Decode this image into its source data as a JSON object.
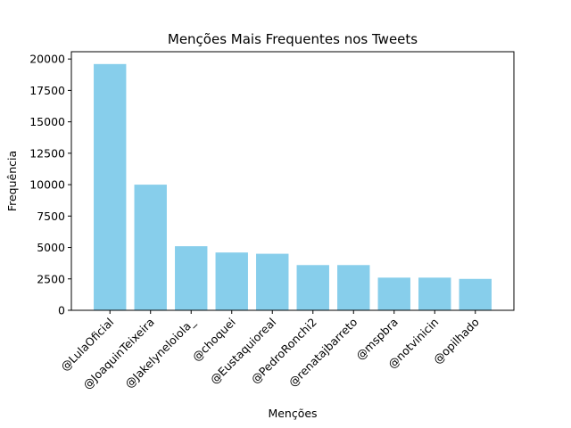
{
  "chart_data": {
    "type": "bar",
    "title": "Menções Mais Frequentes nos Tweets",
    "xlabel": "Menções",
    "ylabel": "Frequência",
    "categories": [
      "@LulaOficial",
      "@JoaquinTeixeira",
      "@Jakelyneloiola_",
      "@choquei",
      "@Eustaquioreal",
      "@PedroRonchi2",
      "@renatajbarreto",
      "@mspbra",
      "@notvinicin",
      "@opilhado"
    ],
    "values": [
      19600,
      10000,
      5100,
      4600,
      4500,
      3600,
      3600,
      2600,
      2600,
      2500
    ],
    "ylim": [
      0,
      20580
    ],
    "yticks": [
      0,
      2500,
      5000,
      7500,
      10000,
      12500,
      15000,
      17500,
      20000
    ],
    "bar_color": "#87CEEB",
    "grid": false,
    "legend": "none"
  }
}
